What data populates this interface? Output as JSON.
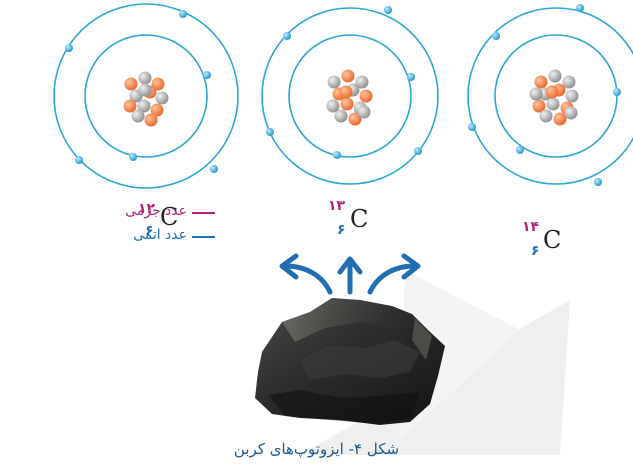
{
  "isotopes": [
    {
      "mass_number": "۱۲",
      "symbol": "C",
      "atomic_number": "۶"
    },
    {
      "mass_number": "۱۳",
      "symbol": "C",
      "atomic_number": "۶"
    },
    {
      "mass_number": "۱۴",
      "symbol": "C",
      "atomic_number": "۶"
    }
  ],
  "legend": {
    "mass_label": "عدد جرمی",
    "atomic_label": "عدد اتمی"
  },
  "caption": "شکل ۴- ایزوتوپ‌های کربن",
  "colors": {
    "orbit": "#2aa7d6",
    "electron": "#2aa7d6",
    "proton": "#ef7d3e",
    "neutron": "#a9a9a9",
    "arrow": "#1f6fb2",
    "mass_number": "#b5247a",
    "atomic_number": "#1e6fb8",
    "caption": "#1e5b8c"
  }
}
